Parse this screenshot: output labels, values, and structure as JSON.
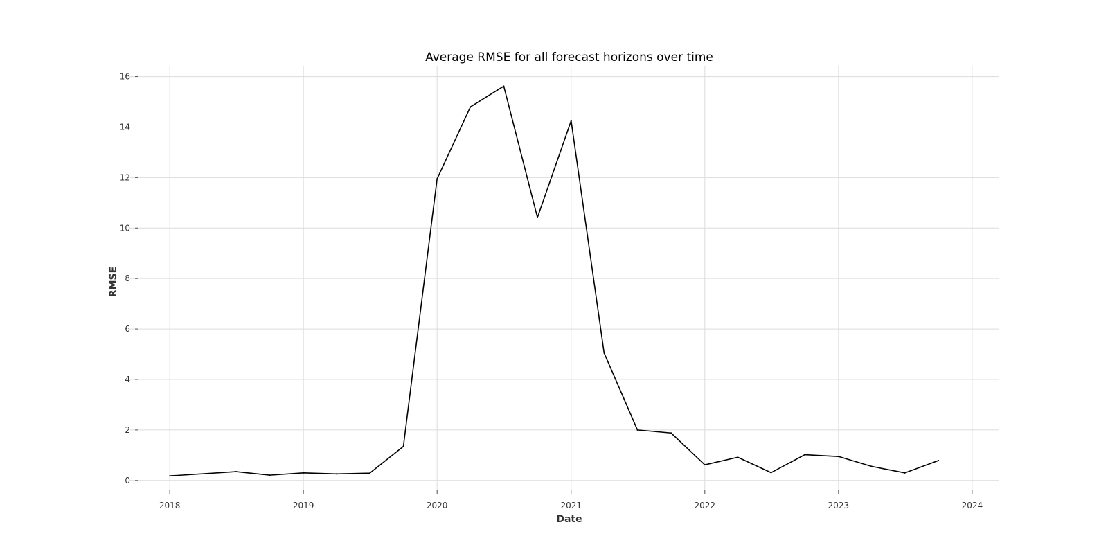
{
  "chart_data": {
    "type": "line",
    "title": "Average RMSE for all forecast horizons over time",
    "xlabel": "Date",
    "ylabel": "RMSE",
    "x_axis_type": "date",
    "xlim": [
      "2017-09-15",
      "2024-03-15"
    ],
    "ylim": [
      -0.5,
      16.4
    ],
    "x_ticks": [
      {
        "date": "2018-01-01",
        "label": "2018"
      },
      {
        "date": "2019-01-01",
        "label": "2019"
      },
      {
        "date": "2020-01-01",
        "label": "2020"
      },
      {
        "date": "2021-01-01",
        "label": "2021"
      },
      {
        "date": "2022-01-01",
        "label": "2022"
      },
      {
        "date": "2023-01-01",
        "label": "2023"
      },
      {
        "date": "2024-01-01",
        "label": "2024"
      }
    ],
    "y_ticks": [
      0,
      2,
      4,
      6,
      8,
      10,
      12,
      14,
      16
    ],
    "grid": true,
    "legend": "none",
    "line_color": "#000000",
    "series": [
      {
        "points": [
          {
            "x": "2018-01-01",
            "y": 0.18
          },
          {
            "x": "2018-07-01",
            "y": 0.35
          },
          {
            "x": "2018-10-01",
            "y": 0.21
          },
          {
            "x": "2019-01-01",
            "y": 0.3
          },
          {
            "x": "2019-04-01",
            "y": 0.26
          },
          {
            "x": "2019-07-01",
            "y": 0.29
          },
          {
            "x": "2019-10-01",
            "y": 1.35
          },
          {
            "x": "2020-01-01",
            "y": 11.95
          },
          {
            "x": "2020-04-01",
            "y": 14.8
          },
          {
            "x": "2020-07-01",
            "y": 15.62
          },
          {
            "x": "2020-10-01",
            "y": 10.42
          },
          {
            "x": "2021-01-01",
            "y": 14.25
          },
          {
            "x": "2021-04-01",
            "y": 5.05
          },
          {
            "x": "2021-07-01",
            "y": 2.0
          },
          {
            "x": "2021-10-01",
            "y": 1.88
          },
          {
            "x": "2022-01-01",
            "y": 0.62
          },
          {
            "x": "2022-04-01",
            "y": 0.92
          },
          {
            "x": "2022-07-01",
            "y": 0.31
          },
          {
            "x": "2022-10-01",
            "y": 1.02
          },
          {
            "x": "2023-01-01",
            "y": 0.95
          },
          {
            "x": "2023-04-01",
            "y": 0.56
          },
          {
            "x": "2023-07-01",
            "y": 0.3
          },
          {
            "x": "2023-10-01",
            "y": 0.79
          }
        ]
      }
    ]
  }
}
